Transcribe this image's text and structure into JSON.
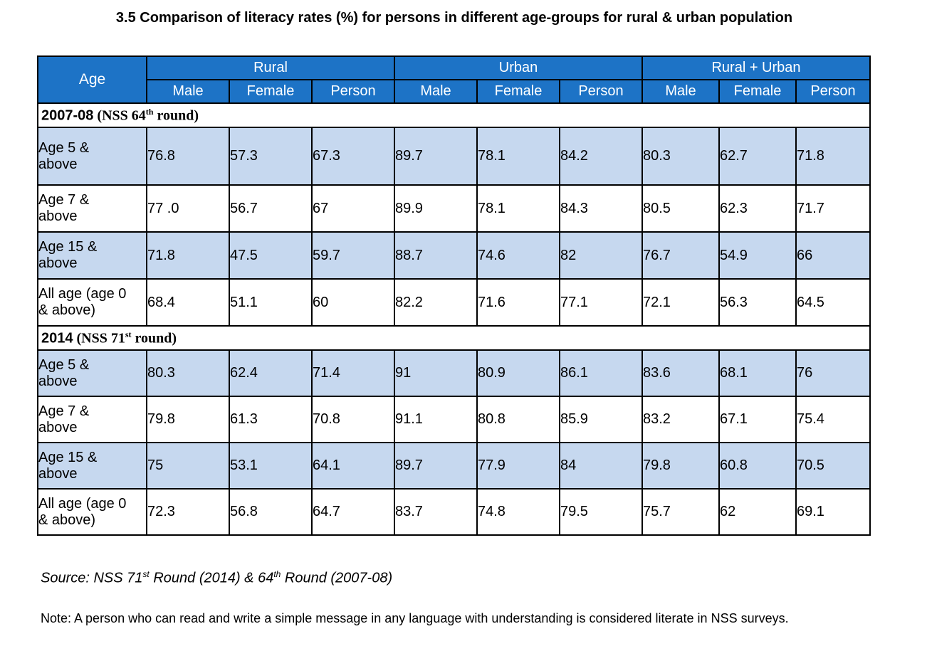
{
  "title": "3.5 Comparison of literacy rates (%) for persons in different  age-groups for rural & urban population",
  "table": {
    "age_header": "Age",
    "groups": [
      "Rural",
      "Urban",
      "Rural + Urban"
    ],
    "subheaders": [
      "Male",
      "Female",
      "Person",
      "Male",
      "Female",
      "Person",
      "Male",
      "Female",
      "Person"
    ],
    "sections": [
      {
        "year": "2007-08",
        "round_prefix": " (NSS 64",
        "round_sup": "th",
        "round_suffix": " round)",
        "rows": [
          {
            "label_1": "Age 5 &",
            "label_2": "above",
            "values": [
              "76.8",
              "57.3",
              "67.3",
              "89.7",
              "78.1",
              "84.2",
              "80.3",
              "62.7",
              "71.8"
            ]
          },
          {
            "label_1": "Age 7 &",
            "label_2": "above",
            "values": [
              "77 .0",
              "56.7",
              "67",
              "89.9",
              "78.1",
              "84.3",
              "80.5",
              "62.3",
              "71.7"
            ]
          },
          {
            "label_1": "Age 15 &",
            "label_2": "above",
            "values": [
              "71.8",
              "47.5",
              "59.7",
              "88.7",
              "74.6",
              "82",
              "76.7",
              "54.9",
              "66"
            ]
          },
          {
            "label_1": "All age (age 0",
            "label_2": "& above)",
            "values": [
              "68.4",
              "51.1",
              "60",
              "82.2",
              "71.6",
              "77.1",
              "72.1",
              "56.3",
              "64.5"
            ]
          }
        ]
      },
      {
        "year": "2014",
        "round_prefix": " (NSS 71",
        "round_sup": "st",
        "round_suffix": " round)",
        "rows": [
          {
            "label_1": "Age 5 &",
            "label_2": "above",
            "values": [
              "80.3",
              "62.4",
              "71.4",
              "91",
              "80.9",
              "86.1",
              "83.6",
              "68.1",
              "76"
            ]
          },
          {
            "label_1": "Age 7 &",
            "label_2": "above",
            "values": [
              "79.8",
              "61.3",
              "70.8",
              "91.1",
              "80.8",
              "85.9",
              "83.2",
              "67.1",
              "75.4"
            ]
          },
          {
            "label_1": "Age 15 &",
            "label_2": "above",
            "values": [
              "75",
              "53.1",
              "64.1",
              "89.7",
              "77.9",
              "84",
              "79.8",
              "60.8",
              "70.5"
            ]
          },
          {
            "label_1": "All age (age 0",
            "label_2": "& above)",
            "values": [
              "72.3",
              "56.8",
              "64.7",
              "83.7",
              "74.8",
              "79.5",
              "75.7",
              "62",
              "69.1"
            ]
          }
        ]
      }
    ]
  },
  "source": {
    "part1": "Source: NSS 71",
    "sup1": "st",
    "part2": "  Round  (2014) & 64",
    "sup2": "th",
    "part3": "  Round (2007-08)"
  },
  "note": "Note: A person who can read and write a simple message in any language with understanding is considered literate in NSS surveys.",
  "colors": {
    "header_bg": "#1d73c6",
    "shade_bg": "#c6d8ef",
    "plain_bg": "#ffffff"
  }
}
